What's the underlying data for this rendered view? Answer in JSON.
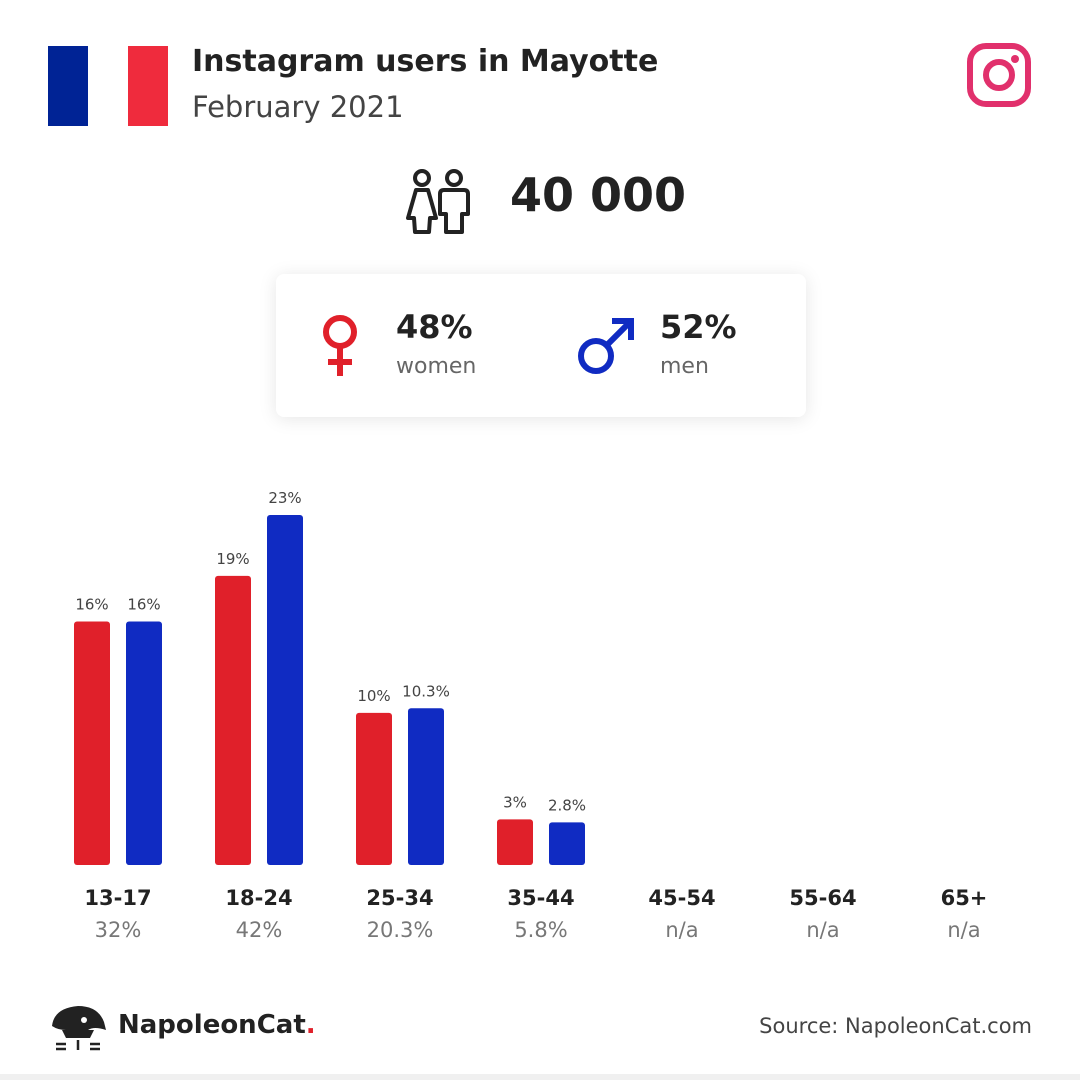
{
  "header": {
    "title": "Instagram users in Mayotte",
    "subtitle": "February 2021",
    "flag_colors": [
      "#002395",
      "#ffffff",
      "#ef2b3d"
    ],
    "app_icon": "instagram-icon"
  },
  "total": {
    "icon": "users-icon",
    "value": "40 000"
  },
  "gender": {
    "women": {
      "icon": "female-symbol-icon",
      "pct": "48%",
      "label": "women",
      "color": "#e0202a"
    },
    "men": {
      "icon": "male-symbol-icon",
      "pct": "52%",
      "label": "men",
      "color": "#102bc2"
    }
  },
  "chart_data": {
    "type": "bar",
    "categories": [
      "13-17",
      "18-24",
      "25-34",
      "35-44",
      "45-54",
      "55-64",
      "65+"
    ],
    "category_totals": [
      "32%",
      "42%",
      "20.3%",
      "5.8%",
      "n/a",
      "n/a",
      "n/a"
    ],
    "series": [
      {
        "values": [
          16,
          19,
          10,
          3,
          null,
          null,
          null
        ],
        "labels": [
          "16%",
          "19%",
          "10%",
          "3%",
          null,
          null,
          null
        ],
        "color": "#e0202a"
      },
      {
        "values": [
          16,
          23,
          10.3,
          2.8,
          null,
          null,
          null
        ],
        "labels": [
          "16%",
          "23%",
          "10.3%",
          "2.8%",
          null,
          null,
          null
        ],
        "color": "#102bc2"
      }
    ],
    "ylim": [
      0,
      23
    ],
    "grid": false
  },
  "footer": {
    "brand_name": "NapoleonCat",
    "brand_dot": ".",
    "logo_icon": "napoleoncat-logo-icon",
    "source": "Source: NapoleonCat.com"
  }
}
